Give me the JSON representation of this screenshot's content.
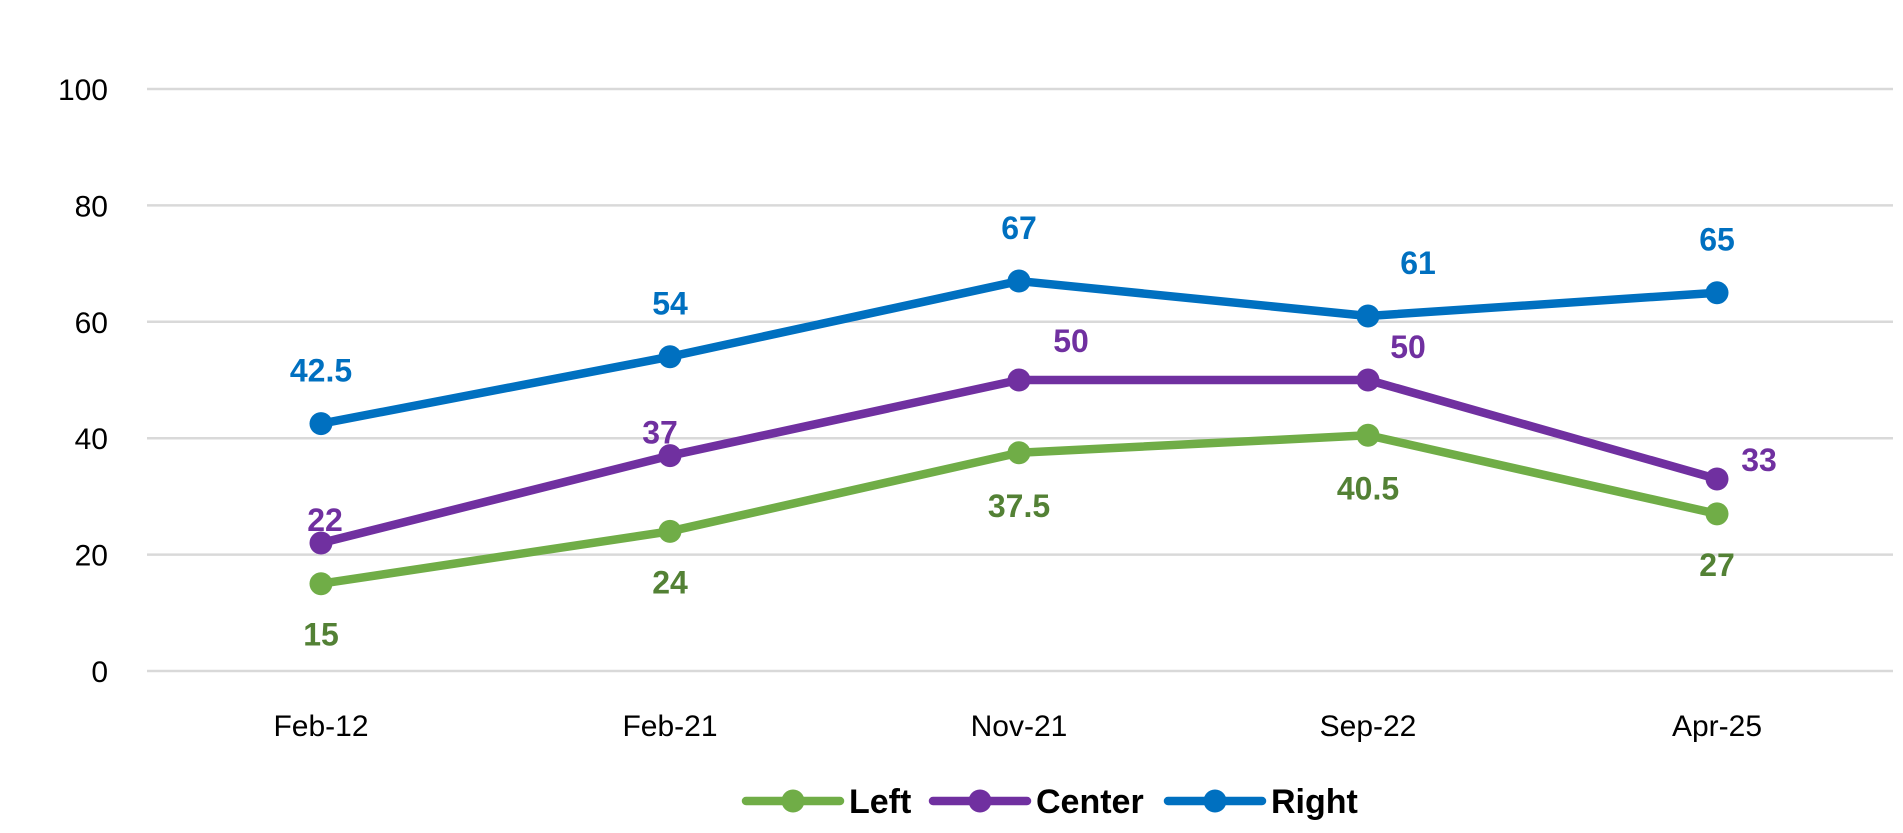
{
  "chart_data": {
    "type": "line",
    "title": "",
    "xlabel": "",
    "ylabel": "",
    "categories": [
      "Feb-12",
      "Feb-21",
      "Nov-21",
      "Sep-22",
      "Apr-25"
    ],
    "ylim": [
      0,
      100
    ],
    "yticks": [
      0,
      20,
      40,
      60,
      80,
      100
    ],
    "grid": true,
    "legend_position": "bottom",
    "series": [
      {
        "name": "Left",
        "color": "#70AD47",
        "label_color": "#538135",
        "values": [
          15,
          24,
          37.5,
          40.5,
          27
        ],
        "labels": [
          "15",
          "24",
          "37.5",
          "40.5",
          "27"
        ]
      },
      {
        "name": "Center",
        "color": "#7030A0",
        "label_color": "#7030A0",
        "values": [
          22,
          37,
          50,
          50,
          33
        ],
        "labels": [
          "22",
          "37",
          "50",
          "50",
          "33"
        ]
      },
      {
        "name": "Right",
        "color": "#0070C0",
        "label_color": "#0070C0",
        "values": [
          42.5,
          54,
          67,
          61,
          65
        ],
        "labels": [
          "42.5",
          "54",
          "67",
          "61",
          "65"
        ]
      }
    ]
  }
}
